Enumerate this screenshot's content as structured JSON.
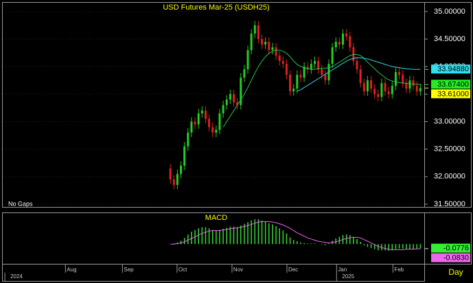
{
  "chart_data": [
    {
      "type": "candlestick",
      "title": "USD Futures  Mar-25  (USDH25)",
      "annotation": "No Gaps",
      "x": [
        0,
        1,
        2,
        3,
        4,
        5,
        6,
        7,
        8,
        9,
        10,
        11,
        12,
        13,
        14,
        15,
        16,
        17,
        18,
        19,
        20,
        21,
        22,
        23,
        24,
        25,
        26,
        27,
        28,
        29,
        30,
        31,
        32,
        33,
        34,
        35,
        36,
        37,
        38,
        39,
        40,
        41,
        42,
        43,
        44,
        45,
        46,
        47,
        48,
        49,
        50,
        51,
        52,
        53,
        54,
        55,
        56,
        57,
        58,
        59,
        60,
        61,
        62,
        63,
        64,
        65,
        66,
        67,
        68,
        69,
        70,
        71
      ],
      "xlim": [
        -47.6,
        72.1
      ],
      "open": [
        32.15,
        31.95,
        31.85,
        32.05,
        32.2,
        32.55,
        32.8,
        33.0,
        32.95,
        33.15,
        33.2,
        33.05,
        32.9,
        32.8,
        32.85,
        33.15,
        33.3,
        33.4,
        33.5,
        33.35,
        33.3,
        33.8,
        33.95,
        34.3,
        34.6,
        34.75,
        34.5,
        34.4,
        34.45,
        34.3,
        34.35,
        34.2,
        34.1,
        34.05,
        33.85,
        33.55,
        33.6,
        33.85,
        33.8,
        34.0,
        33.95,
        34.05,
        34.1,
        33.95,
        33.85,
        33.75,
        34.05,
        34.35,
        34.45,
        34.4,
        34.6,
        34.55,
        34.35,
        34.1,
        33.95,
        33.7,
        33.55,
        33.75,
        33.6,
        33.5,
        33.45,
        33.7,
        33.55,
        33.5,
        33.65,
        33.9,
        33.85,
        33.7,
        33.6,
        33.75,
        33.65,
        33.55
      ],
      "high": [
        32.23,
        32.03,
        32.13,
        32.28,
        32.63,
        32.88,
        33.08,
        33.08,
        33.23,
        33.28,
        33.28,
        33.13,
        32.98,
        32.93,
        33.23,
        33.38,
        33.48,
        33.58,
        33.58,
        33.43,
        33.88,
        34.03,
        34.38,
        34.68,
        34.83,
        34.83,
        34.58,
        34.53,
        34.53,
        34.43,
        34.43,
        34.28,
        34.18,
        34.13,
        33.93,
        33.68,
        33.93,
        33.93,
        34.08,
        34.08,
        34.13,
        34.18,
        34.18,
        34.03,
        33.93,
        34.13,
        34.43,
        34.53,
        34.53,
        34.68,
        34.68,
        34.63,
        34.43,
        34.18,
        34.03,
        33.78,
        33.83,
        33.83,
        33.68,
        33.58,
        33.78,
        33.78,
        33.63,
        33.73,
        33.98,
        33.98,
        33.93,
        33.78,
        33.83,
        33.83,
        33.73,
        33.69
      ],
      "low": [
        31.87,
        31.77,
        31.77,
        31.97,
        32.12,
        32.47,
        32.72,
        32.87,
        32.87,
        33.07,
        32.97,
        32.82,
        32.72,
        32.72,
        32.77,
        33.07,
        33.22,
        33.32,
        33.27,
        33.22,
        33.22,
        33.72,
        33.87,
        34.22,
        34.52,
        34.42,
        34.32,
        34.32,
        34.22,
        34.22,
        34.12,
        34.02,
        33.97,
        33.77,
        33.47,
        33.47,
        33.52,
        33.72,
        33.72,
        33.87,
        33.87,
        33.97,
        33.87,
        33.77,
        33.67,
        33.67,
        33.97,
        34.27,
        34.32,
        34.32,
        34.47,
        34.27,
        34.02,
        33.87,
        33.62,
        33.47,
        33.47,
        33.52,
        33.42,
        33.37,
        33.37,
        33.47,
        33.42,
        33.42,
        33.57,
        33.77,
        33.62,
        33.52,
        33.52,
        33.57,
        33.47,
        33.47
      ],
      "close": [
        31.95,
        31.85,
        32.05,
        32.2,
        32.55,
        32.8,
        33.0,
        32.95,
        33.15,
        33.2,
        33.05,
        32.9,
        32.8,
        32.85,
        33.15,
        33.3,
        33.4,
        33.5,
        33.35,
        33.3,
        33.8,
        33.95,
        34.3,
        34.6,
        34.75,
        34.5,
        34.4,
        34.45,
        34.3,
        34.35,
        34.2,
        34.1,
        34.05,
        33.85,
        33.55,
        33.6,
        33.85,
        33.8,
        34.0,
        33.95,
        34.05,
        34.1,
        33.95,
        33.85,
        33.75,
        34.05,
        34.35,
        34.45,
        34.4,
        34.6,
        34.55,
        34.35,
        34.1,
        33.95,
        33.7,
        33.55,
        33.75,
        33.6,
        33.5,
        33.45,
        33.7,
        33.55,
        33.5,
        33.65,
        33.9,
        33.85,
        33.7,
        33.6,
        33.75,
        33.65,
        33.55,
        33.61
      ],
      "up_color": "#22d022",
      "down_color": "#e02020",
      "lines": [
        {
          "color": "#22c84a",
          "values": [
            null,
            null,
            null,
            null,
            null,
            null,
            null,
            null,
            null,
            null,
            null,
            null,
            null,
            null,
            null,
            32.9,
            33.0,
            33.1,
            33.2,
            33.3,
            33.4,
            33.5,
            33.62,
            33.75,
            33.88,
            34.0,
            34.1,
            34.18,
            34.24,
            34.28,
            34.3,
            34.3,
            34.28,
            34.24,
            34.18,
            34.1,
            34.04,
            34.0,
            33.98,
            33.96,
            33.95,
            33.95,
            33.96,
            33.97,
            33.97,
            33.98,
            34.0,
            34.04,
            34.08,
            34.12,
            34.16,
            34.2,
            34.22,
            34.22,
            34.2,
            34.15,
            34.08,
            34.02,
            33.96,
            33.9,
            33.85,
            33.8,
            33.76,
            33.74,
            33.72,
            33.71,
            33.7,
            33.7,
            33.69,
            33.68,
            33.68,
            33.674
          ]
        },
        {
          "color": "#2fd8e0",
          "values": [
            null,
            null,
            null,
            null,
            null,
            null,
            null,
            null,
            null,
            null,
            null,
            null,
            null,
            null,
            null,
            null,
            null,
            null,
            null,
            null,
            null,
            null,
            null,
            null,
            null,
            null,
            null,
            null,
            null,
            null,
            null,
            null,
            null,
            null,
            null,
            null,
            33.55,
            33.58,
            33.62,
            33.66,
            33.7,
            33.74,
            33.78,
            33.82,
            33.86,
            33.9,
            33.94,
            33.98,
            34.02,
            34.06,
            34.1,
            34.13,
            34.15,
            34.16,
            34.16,
            34.15,
            34.14,
            34.12,
            34.1,
            34.08,
            34.06,
            34.04,
            34.02,
            34.0,
            33.99,
            33.98,
            33.97,
            33.96,
            33.955,
            33.95,
            33.95,
            33.9488
          ]
        }
      ],
      "markers": [
        {
          "value": 33.9488,
          "label": "33.94880",
          "color": "#2fe0f0"
        },
        {
          "value": 33.674,
          "label": "33.67400",
          "color": "#22ee22"
        },
        {
          "value": 33.61,
          "label": "33.61000",
          "color": "#ffff00"
        }
      ],
      "ylim": [
        31.45,
        35.16
      ],
      "yticks": [
        {
          "value": 31.5,
          "label": "31.50000"
        },
        {
          "value": 32,
          "label": "32.00000"
        },
        {
          "value": 32.5,
          "label": "32.50000"
        },
        {
          "value": 33,
          "label": "33.00000"
        },
        {
          "value": 33.5,
          "label": "33.50000"
        },
        {
          "value": 34,
          "label": "34.00000"
        },
        {
          "value": 34.5,
          "label": "34.50000"
        },
        {
          "value": 35,
          "label": "35.00000"
        }
      ],
      "grid": true
    },
    {
      "type": "macd",
      "title": "MACD",
      "x": [
        0,
        1,
        2,
        3,
        4,
        5,
        6,
        7,
        8,
        9,
        10,
        11,
        12,
        13,
        14,
        15,
        16,
        17,
        18,
        19,
        20,
        21,
        22,
        23,
        24,
        25,
        26,
        27,
        28,
        29,
        30,
        31,
        32,
        33,
        34,
        35,
        36,
        37,
        38,
        39,
        40,
        41,
        42,
        43,
        44,
        45,
        46,
        47,
        48,
        49,
        50,
        51,
        52,
        53,
        54,
        55,
        56,
        57,
        58,
        59,
        60,
        61,
        62,
        63,
        64,
        65,
        66,
        67,
        68,
        69,
        70,
        71
      ],
      "xlim": [
        -47.6,
        72.1
      ],
      "values": [
        0.0,
        0.01,
        0.03,
        0.06,
        0.11,
        0.17,
        0.22,
        0.25,
        0.28,
        0.3,
        0.3,
        0.28,
        0.25,
        0.24,
        0.25,
        0.27,
        0.29,
        0.31,
        0.31,
        0.3,
        0.33,
        0.36,
        0.39,
        0.42,
        0.44,
        0.44,
        0.42,
        0.4,
        0.37,
        0.35,
        0.32,
        0.28,
        0.24,
        0.19,
        0.12,
        0.07,
        0.05,
        0.03,
        0.02,
        0.01,
        0.01,
        0.01,
        0.0,
        -0.01,
        -0.02,
        0.01,
        0.06,
        0.1,
        0.13,
        0.16,
        0.17,
        0.16,
        0.13,
        0.09,
        0.04,
        -0.02,
        -0.05,
        -0.07,
        -0.09,
        -0.11,
        -0.11,
        -0.11,
        -0.12,
        -0.11,
        -0.09,
        -0.08,
        -0.08,
        -0.09,
        -0.09,
        -0.085,
        -0.08,
        -0.0776
      ],
      "color": "#33dd33",
      "lines": [
        {
          "color": "#ee66ee",
          "values": [
            0.0,
            0.0,
            0.01,
            0.02,
            0.04,
            0.07,
            0.1,
            0.13,
            0.16,
            0.19,
            0.21,
            0.23,
            0.24,
            0.24,
            0.24,
            0.25,
            0.26,
            0.27,
            0.28,
            0.29,
            0.3,
            0.31,
            0.33,
            0.35,
            0.37,
            0.39,
            0.4,
            0.4,
            0.4,
            0.39,
            0.38,
            0.36,
            0.34,
            0.31,
            0.28,
            0.24,
            0.2,
            0.17,
            0.14,
            0.11,
            0.09,
            0.07,
            0.05,
            0.04,
            0.03,
            0.02,
            0.03,
            0.04,
            0.06,
            0.08,
            0.1,
            0.11,
            0.12,
            0.12,
            0.11,
            0.08,
            0.05,
            0.02,
            -0.01,
            -0.04,
            -0.06,
            -0.08,
            -0.09,
            -0.1,
            -0.1,
            -0.1,
            -0.1,
            -0.09,
            -0.09,
            -0.09,
            -0.085,
            -0.083
          ]
        }
      ],
      "markers": [
        {
          "value": -0.0776,
          "label": "-0.0776",
          "color": "#33ee33"
        },
        {
          "value": -0.083,
          "label": "-0.0830",
          "color": "#ee66ee"
        }
      ],
      "ylim": [
        -0.35,
        0.55
      ],
      "xticks": [
        {
          "value": -29.8,
          "label": "Aug"
        },
        {
          "value": -13.6,
          "label": "Sep"
        },
        {
          "value": 1.9,
          "label": "Oct"
        },
        {
          "value": 17.5,
          "label": "Nov"
        },
        {
          "value": 33.1,
          "label": "Dec"
        },
        {
          "value": 47.2,
          "label": "Jan"
        },
        {
          "value": 63.2,
          "label": "Feb"
        }
      ],
      "years": [
        {
          "value": -47.0,
          "label": "2024"
        },
        {
          "value": 47.2,
          "label": "2025"
        }
      ],
      "period": "Day"
    }
  ]
}
